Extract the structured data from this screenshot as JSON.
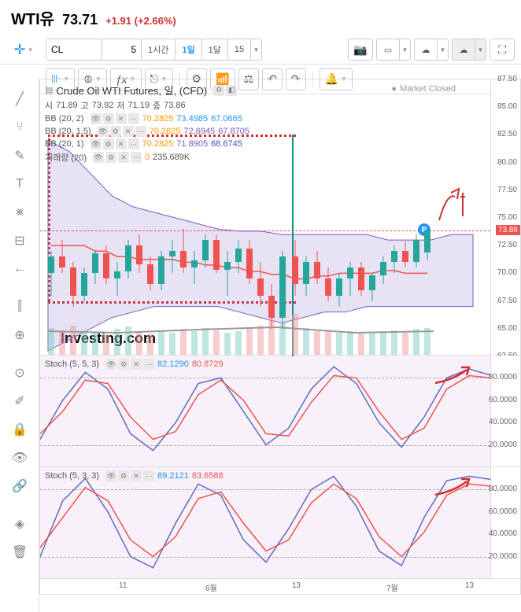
{
  "header": {
    "symbol": "WTI유",
    "price": "73.71",
    "change": "+1.91 (+2.66%)",
    "change_color": "#d32f2f"
  },
  "toolbar": {
    "ticker": "CL",
    "interval_num": "5",
    "tf_1h": "1시간",
    "tf_1d": "1일",
    "tf_1m": "1달",
    "tf_15": "15"
  },
  "chart": {
    "title": "Crude Oil WTI Futures, 일, (CFD)",
    "ohlc_open_label": "시",
    "ohlc_open": "71.89",
    "ohlc_high_label": "고",
    "ohlc_high": "73.92",
    "ohlc_low_label": "저",
    "ohlc_low": "71.19",
    "ohlc_close_label": "종",
    "ohlc_close": "73.86",
    "market_status": "Market Closed",
    "bb1_label": "BB (20, 2)",
    "bb1_v1": "70.2825",
    "bb1_v2": "73.4985",
    "bb1_v3": "67.0665",
    "bb2_label": "BB (20, 1.5)",
    "bb2_v1": "70.2825",
    "bb2_v2": "72.6945",
    "bb2_v3": "67.8705",
    "bb3_label": "BB (20, 1)",
    "bb3_v1": "70.2825",
    "bb3_v2": "71.8905",
    "bb3_v3": "68.6745",
    "vol_label": "거래량 (20)",
    "vol_v1": "0",
    "vol_v2": "235.689K",
    "price_marker": "73.86",
    "watermark": "Investing.com",
    "p_badge": "P",
    "y_ticks": [
      "87.50",
      "85.00",
      "82.50",
      "80.00",
      "77.50",
      "75.00",
      "72.50",
      "70.00",
      "67.50",
      "65.00",
      "62.50"
    ],
    "colors": {
      "up": "#26a69a",
      "down": "#ef5350",
      "bb_outer": "#7e57c2",
      "bb_mid": "#ef5350",
      "vol_up": "#80cbc4",
      "vol_down": "#ef9a9a"
    },
    "candles": [
      {
        "x": 10,
        "o": 70,
        "h": 72,
        "l": 68,
        "c": 71.5,
        "v": 45
      },
      {
        "x": 24,
        "o": 71.5,
        "h": 73,
        "l": 70,
        "c": 70.5,
        "v": 40
      },
      {
        "x": 38,
        "o": 70.5,
        "h": 71,
        "l": 67,
        "c": 68,
        "v": 50
      },
      {
        "x": 52,
        "o": 68,
        "h": 70.5,
        "l": 67.5,
        "c": 70,
        "v": 42
      },
      {
        "x": 66,
        "o": 70,
        "h": 72,
        "l": 69,
        "c": 71.8,
        "v": 38
      },
      {
        "x": 80,
        "o": 71.8,
        "h": 72.5,
        "l": 69,
        "c": 69.5,
        "v": 35
      },
      {
        "x": 94,
        "o": 69.5,
        "h": 71,
        "l": 68,
        "c": 70.2,
        "v": 44
      },
      {
        "x": 108,
        "o": 70.2,
        "h": 73,
        "l": 69.5,
        "c": 72.5,
        "v": 48
      },
      {
        "x": 122,
        "o": 72.5,
        "h": 73.5,
        "l": 70,
        "c": 70.8,
        "v": 40
      },
      {
        "x": 136,
        "o": 70.8,
        "h": 71.5,
        "l": 68.5,
        "c": 69,
        "v": 36
      },
      {
        "x": 150,
        "o": 69,
        "h": 72,
        "l": 68.5,
        "c": 71.5,
        "v": 42
      },
      {
        "x": 164,
        "o": 71.5,
        "h": 73,
        "l": 70,
        "c": 72,
        "v": 38
      },
      {
        "x": 178,
        "o": 72,
        "h": 74,
        "l": 70,
        "c": 70.5,
        "v": 44
      },
      {
        "x": 192,
        "o": 70.5,
        "h": 72,
        "l": 69,
        "c": 71.2,
        "v": 40
      },
      {
        "x": 206,
        "o": 71.2,
        "h": 73.5,
        "l": 70.5,
        "c": 73,
        "v": 46
      },
      {
        "x": 220,
        "o": 73,
        "h": 73.5,
        "l": 70,
        "c": 70.3,
        "v": 42
      },
      {
        "x": 234,
        "o": 70.3,
        "h": 72,
        "l": 68,
        "c": 71,
        "v": 38
      },
      {
        "x": 248,
        "o": 71,
        "h": 73,
        "l": 70,
        "c": 72.2,
        "v": 40
      },
      {
        "x": 262,
        "o": 72.2,
        "h": 73,
        "l": 69,
        "c": 69.5,
        "v": 44
      },
      {
        "x": 276,
        "o": 69.5,
        "h": 71,
        "l": 67,
        "c": 68,
        "v": 50
      },
      {
        "x": 290,
        "o": 68,
        "h": 69,
        "l": 65,
        "c": 66,
        "v": 60
      },
      {
        "x": 304,
        "o": 66,
        "h": 72,
        "l": 65,
        "c": 71.5,
        "v": 55
      },
      {
        "x": 320,
        "o": 71.5,
        "h": 73,
        "l": 68,
        "c": 69,
        "v": 70
      },
      {
        "x": 334,
        "o": 69,
        "h": 71.5,
        "l": 68,
        "c": 71,
        "v": 45
      },
      {
        "x": 348,
        "o": 71,
        "h": 72,
        "l": 69,
        "c": 69.5,
        "v": 40
      },
      {
        "x": 362,
        "o": 69.5,
        "h": 70.5,
        "l": 67.5,
        "c": 68,
        "v": 42
      },
      {
        "x": 376,
        "o": 68,
        "h": 70,
        "l": 67,
        "c": 69.5,
        "v": 38
      },
      {
        "x": 390,
        "o": 69.5,
        "h": 71,
        "l": 68,
        "c": 70.5,
        "v": 40
      },
      {
        "x": 404,
        "o": 70.5,
        "h": 71,
        "l": 68,
        "c": 68.5,
        "v": 36
      },
      {
        "x": 418,
        "o": 68.5,
        "h": 70,
        "l": 67.5,
        "c": 69.8,
        "v": 38
      },
      {
        "x": 432,
        "o": 69.8,
        "h": 71.5,
        "l": 69,
        "c": 71,
        "v": 40
      },
      {
        "x": 446,
        "o": 71,
        "h": 72.5,
        "l": 70,
        "c": 72,
        "v": 42
      },
      {
        "x": 460,
        "o": 72,
        "h": 73,
        "l": 70.5,
        "c": 71,
        "v": 38
      },
      {
        "x": 474,
        "o": 71,
        "h": 73.5,
        "l": 70.5,
        "c": 73,
        "v": 44
      },
      {
        "x": 488,
        "o": 71.89,
        "h": 73.92,
        "l": 71.19,
        "c": 73.86,
        "v": 46
      }
    ],
    "ylim": [
      62.5,
      87.5
    ],
    "vol_max": 80
  },
  "stoch1": {
    "label": "Stoch (5, 5, 3)",
    "v1": "82.1290",
    "v2": "80.8729",
    "y_ticks": [
      "80.0000",
      "60.0000",
      "40.0000",
      "20.0000"
    ],
    "k_color": "#5c6bc0",
    "d_color": "#ef5350",
    "k": [
      25,
      60,
      85,
      70,
      30,
      15,
      40,
      75,
      80,
      50,
      20,
      35,
      70,
      90,
      75,
      40,
      18,
      45,
      80,
      88,
      82
    ],
    "d": [
      30,
      50,
      78,
      75,
      45,
      25,
      32,
      65,
      78,
      60,
      30,
      28,
      58,
      82,
      80,
      50,
      25,
      35,
      70,
      82,
      80
    ]
  },
  "stoch2": {
    "label": "Stoch (5, 3, 3)",
    "v1": "89.2121",
    "v2": "83.6588",
    "y_ticks": [
      "80.0000",
      "60.0000",
      "40.0000",
      "20.0000"
    ],
    "k_color": "#5c6bc0",
    "d_color": "#ef5350",
    "k": [
      20,
      70,
      90,
      60,
      20,
      10,
      50,
      85,
      75,
      35,
      15,
      45,
      80,
      92,
      65,
      25,
      12,
      55,
      88,
      92,
      89
    ],
    "d": [
      28,
      55,
      82,
      70,
      35,
      20,
      38,
      72,
      78,
      50,
      25,
      35,
      68,
      85,
      72,
      38,
      20,
      42,
      75,
      85,
      83
    ]
  },
  "x_axis": {
    "ticks": [
      {
        "pos": 100,
        "label": "11"
      },
      {
        "pos": 210,
        "label": "6월"
      },
      {
        "pos": 320,
        "label": "13"
      },
      {
        "pos": 440,
        "label": "7월"
      },
      {
        "pos": 540,
        "label": "13"
      }
    ]
  }
}
